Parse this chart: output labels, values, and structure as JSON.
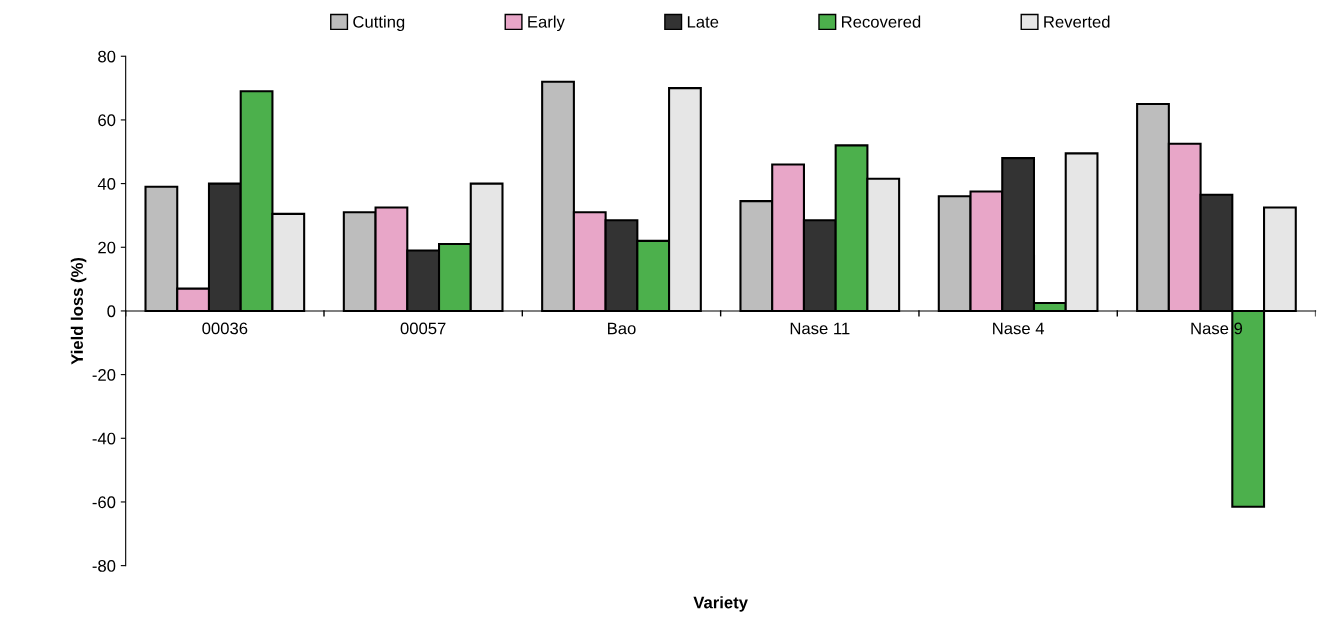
{
  "chart_data": {
    "type": "bar",
    "xlabel": "Variety",
    "ylabel": "Yield loss (%)",
    "categories": [
      "00036",
      "00057",
      "Bao",
      "Nase 11",
      "Nase 4",
      "Nase 9"
    ],
    "series": [
      {
        "name": "Cutting",
        "color": "#bdbdbd",
        "values": [
          39,
          31,
          72,
          34.5,
          36,
          65
        ]
      },
      {
        "name": "Early",
        "color": "#e8a6c8",
        "values": [
          7,
          32.5,
          31,
          46,
          37.5,
          52.5
        ]
      },
      {
        "name": "Late",
        "color": "#333333",
        "values": [
          40,
          19,
          28.5,
          28.5,
          48,
          36.5
        ]
      },
      {
        "name": "Recovered",
        "color": "#4cb04c",
        "values": [
          69,
          21,
          22,
          52,
          2.5,
          -61.5
        ]
      },
      {
        "name": "Reverted",
        "color": "#e6e6e6",
        "values": [
          30.5,
          40,
          70,
          41.5,
          49.5,
          32.5
        ]
      }
    ],
    "ylim": [
      -80,
      80
    ],
    "yticks": [
      -80,
      -60,
      -40,
      -20,
      0,
      20,
      40,
      60,
      80
    ],
    "grid": false,
    "legend": "top"
  }
}
